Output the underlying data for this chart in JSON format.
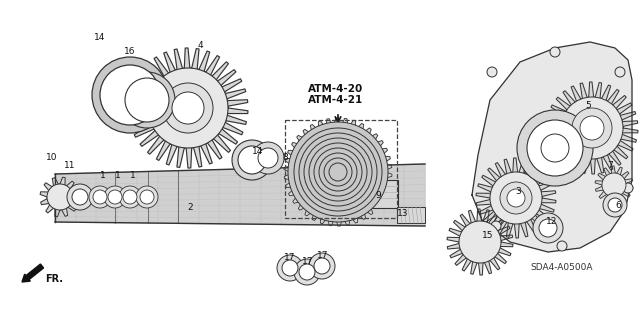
{
  "background_color": "#ffffff",
  "diagram_code": "SDA4-A0500A",
  "ref_codes": [
    "ATM-4-20",
    "ATM-4-21"
  ],
  "direction_label": "FR.",
  "labels": [
    [
      100,
      38,
      "14"
    ],
    [
      130,
      52,
      "16"
    ],
    [
      200,
      45,
      "4"
    ],
    [
      258,
      152,
      "14"
    ],
    [
      285,
      158,
      "8"
    ],
    [
      52,
      158,
      "10"
    ],
    [
      70,
      165,
      "11"
    ],
    [
      103,
      175,
      "1"
    ],
    [
      118,
      175,
      "1"
    ],
    [
      133,
      175,
      "1"
    ],
    [
      378,
      195,
      "9"
    ],
    [
      403,
      213,
      "13"
    ],
    [
      518,
      192,
      "3"
    ],
    [
      488,
      235,
      "15"
    ],
    [
      552,
      222,
      "12"
    ],
    [
      610,
      165,
      "7"
    ],
    [
      618,
      205,
      "6"
    ],
    [
      588,
      105,
      "5"
    ],
    [
      290,
      258,
      "17"
    ],
    [
      308,
      262,
      "17"
    ],
    [
      323,
      256,
      "17"
    ],
    [
      190,
      208,
      "2"
    ]
  ]
}
